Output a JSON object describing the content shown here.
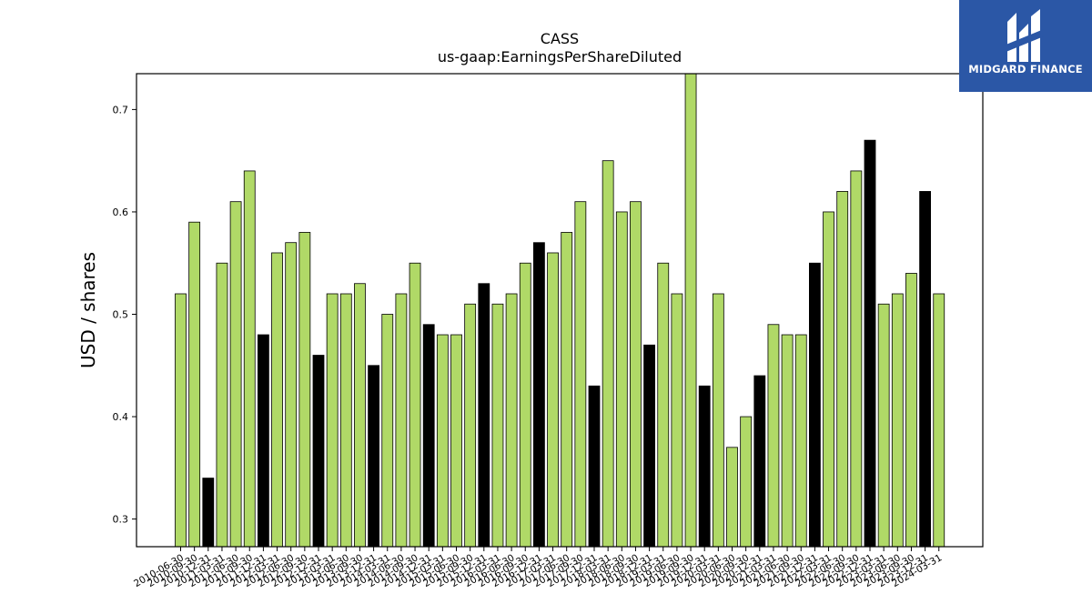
{
  "chart_data": {
    "type": "bar",
    "title": "CASS",
    "subtitle": "us-gaap:EarningsPerShareDiluted",
    "xlabel": "",
    "ylabel": "USD / shares",
    "ylim": [
      0.273,
      0.735
    ],
    "yticks": [
      0.3,
      0.4,
      0.5,
      0.6,
      0.7
    ],
    "grid": false,
    "colors": {
      "primary": "#b0d967",
      "alternate": "#000000",
      "edge": "#000000"
    },
    "categories": [
      "2010-06-30",
      "2010-09-30",
      "2010-12-31",
      "2011-03-31",
      "2011-06-30",
      "2011-09-30",
      "2011-12-31",
      "2012-03-31",
      "2012-06-30",
      "2012-09-30",
      "2012-12-31",
      "2013-03-31",
      "2013-06-30",
      "2013-09-30",
      "2013-12-31",
      "2014-03-31",
      "2014-06-30",
      "2014-09-30",
      "2014-12-31",
      "2015-03-31",
      "2015-06-30",
      "2015-09-30",
      "2015-12-31",
      "2016-03-31",
      "2016-06-30",
      "2016-09-30",
      "2016-12-31",
      "2017-03-31",
      "2017-06-30",
      "2017-09-30",
      "2017-12-31",
      "2018-03-31",
      "2018-06-30",
      "2018-09-30",
      "2018-12-31",
      "2019-03-31",
      "2019-06-30",
      "2019-09-30",
      "2019-12-31",
      "2020-03-31",
      "2020-06-30",
      "2020-09-30",
      "2020-12-31",
      "2021-03-31",
      "2021-06-30",
      "2021-09-30",
      "2021-12-31",
      "2022-03-31",
      "2022-06-30",
      "2022-09-30",
      "2022-12-31",
      "2023-03-31",
      "2023-06-30",
      "2023-09-30",
      "2023-12-31",
      "2024-03-31"
    ],
    "values": [
      0.52,
      0.59,
      0.34,
      0.55,
      0.61,
      0.64,
      0.48,
      0.56,
      0.57,
      0.58,
      0.46,
      0.52,
      0.52,
      0.53,
      0.45,
      0.5,
      0.52,
      0.55,
      0.49,
      0.48,
      0.48,
      0.51,
      0.53,
      0.51,
      0.52,
      0.55,
      0.57,
      0.56,
      0.58,
      0.61,
      0.43,
      0.65,
      0.6,
      0.61,
      0.47,
      0.55,
      0.52,
      0.74,
      0.43,
      0.52,
      0.37,
      0.4,
      0.44,
      0.49,
      0.48,
      0.48,
      0.55,
      0.6,
      0.62,
      0.64,
      0.67,
      0.51,
      0.52,
      0.54,
      0.62,
      0.52
    ],
    "highlight": [
      false,
      false,
      true,
      false,
      false,
      false,
      true,
      false,
      false,
      false,
      true,
      false,
      false,
      false,
      true,
      false,
      false,
      false,
      true,
      false,
      false,
      false,
      true,
      false,
      false,
      false,
      true,
      false,
      false,
      false,
      true,
      false,
      false,
      false,
      true,
      false,
      false,
      false,
      true,
      false,
      false,
      false,
      true,
      false,
      false,
      false,
      true,
      false,
      false,
      false,
      true,
      false,
      false,
      false,
      true,
      false
    ]
  },
  "brand": {
    "name": "MIDGARD FINANCE",
    "color": "#2b57a6"
  }
}
